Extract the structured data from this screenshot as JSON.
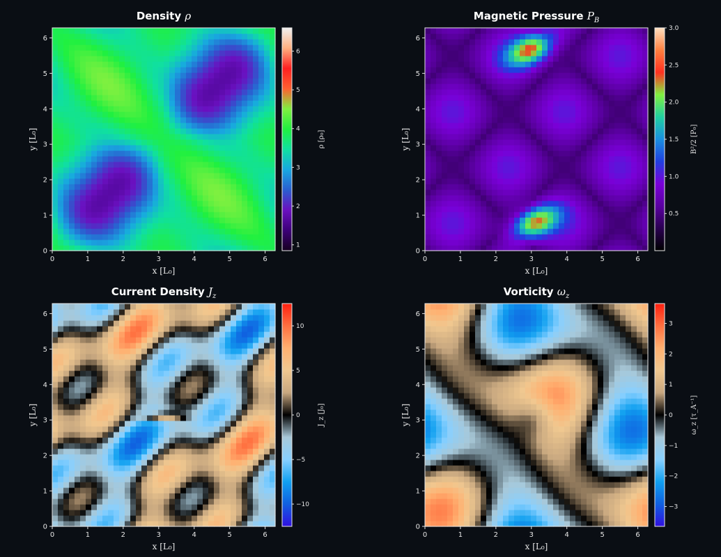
{
  "colors": {
    "background": "#0a0e14",
    "text": "#e6e6e6",
    "density_cmap": [
      "#16001f",
      "#3c0078",
      "#6a10c0",
      "#2a5fd0",
      "#18a8e0",
      "#10e0a0",
      "#20f040",
      "#80f040",
      "#ff6030",
      "#ff2020",
      "#ffb080",
      "#f0f0f0"
    ],
    "pressure_cmap": [
      "#000000",
      "#2a0050",
      "#5a00a0",
      "#7a00d8",
      "#2040e0",
      "#1a90e0",
      "#20d0a0",
      "#80f040",
      "#ff3020",
      "#ff8040",
      "#ffe0c0"
    ],
    "diverging_cmap": [
      "#3010e0",
      "#1060e0",
      "#10a0f0",
      "#88d0ff",
      "#a8c8d8",
      "#000000",
      "#c8a880",
      "#f0c890",
      "#ffb070",
      "#ff7040",
      "#ff2010"
    ]
  },
  "chart_data": [
    {
      "id": "density",
      "type": "heatmap",
      "title": "Density",
      "title_symbol": "ρ",
      "xlabel": "x [L₀]",
      "ylabel": "y [L₀]",
      "xlim": [
        0,
        6.283
      ],
      "ylim": [
        0,
        6.283
      ],
      "x_ticks": [
        "0",
        "1",
        "2",
        "3",
        "4",
        "5",
        "6"
      ],
      "y_ticks": [
        "0",
        "1",
        "2",
        "3",
        "4",
        "5",
        "6"
      ],
      "colorbar": {
        "label": "ρ [ρ₀]",
        "range": [
          0.85,
          6.6
        ],
        "ticks": [
          1,
          2,
          3,
          4,
          5,
          6
        ],
        "tick_labels": [
          "1",
          "2",
          "3",
          "4",
          "5",
          "6"
        ],
        "cmap": "density_cmap"
      }
    },
    {
      "id": "magnetic-pressure",
      "type": "heatmap",
      "title": "Magnetic Pressure",
      "title_symbol": "P",
      "title_subscript": "B",
      "xlabel": "x [L₀]",
      "ylabel": "y [L₀]",
      "xlim": [
        0,
        6.283
      ],
      "ylim": [
        0,
        6.283
      ],
      "x_ticks": [
        "0",
        "1",
        "2",
        "3",
        "4",
        "5",
        "6"
      ],
      "y_ticks": [
        "0",
        "1",
        "2",
        "3",
        "4",
        "5",
        "6"
      ],
      "colorbar": {
        "label": "B²/2 [P₀]",
        "range": [
          0,
          3.0
        ],
        "ticks": [
          0.5,
          1.0,
          1.5,
          2.0,
          2.5,
          3.0
        ],
        "tick_labels": [
          "0.5",
          "1.0",
          "1.5",
          "2.0",
          "2.5",
          "3.0"
        ],
        "cmap": "pressure_cmap"
      }
    },
    {
      "id": "current-density",
      "type": "heatmap",
      "title": "Current Density",
      "title_symbol": "J",
      "title_subscript": "z",
      "xlabel": "x [L₀]",
      "ylabel": "y [L₀]",
      "xlim": [
        0,
        6.283
      ],
      "ylim": [
        0,
        6.283
      ],
      "x_ticks": [
        "0",
        "1",
        "2",
        "3",
        "4",
        "5",
        "6"
      ],
      "y_ticks": [
        "0",
        "1",
        "2",
        "3",
        "4",
        "5",
        "6"
      ],
      "colorbar": {
        "label": "J_z [J₀]",
        "range": [
          -12.5,
          12.5
        ],
        "ticks": [
          -10,
          -5,
          0,
          5,
          10
        ],
        "tick_labels": [
          "−10",
          "−5",
          "0",
          "5",
          "10"
        ],
        "cmap": "diverging_cmap"
      }
    },
    {
      "id": "vorticity",
      "type": "heatmap",
      "title": "Vorticity",
      "title_symbol": "ω",
      "title_subscript": "z",
      "xlabel": "x [L₀]",
      "ylabel": "y [L₀]",
      "xlim": [
        0,
        6.283
      ],
      "ylim": [
        0,
        6.283
      ],
      "x_ticks": [
        "0",
        "1",
        "2",
        "3",
        "4",
        "5",
        "6"
      ],
      "y_ticks": [
        "0",
        "1",
        "2",
        "3",
        "4",
        "5",
        "6"
      ],
      "colorbar": {
        "label": "ω_z [τ_A⁻¹]",
        "range": [
          -3.65,
          3.65
        ],
        "ticks": [
          -3,
          -2,
          -1,
          0,
          1,
          2,
          3
        ],
        "tick_labels": [
          "−3",
          "−2",
          "−1",
          "0",
          "1",
          "2",
          "3"
        ],
        "cmap": "diverging_cmap"
      }
    }
  ]
}
